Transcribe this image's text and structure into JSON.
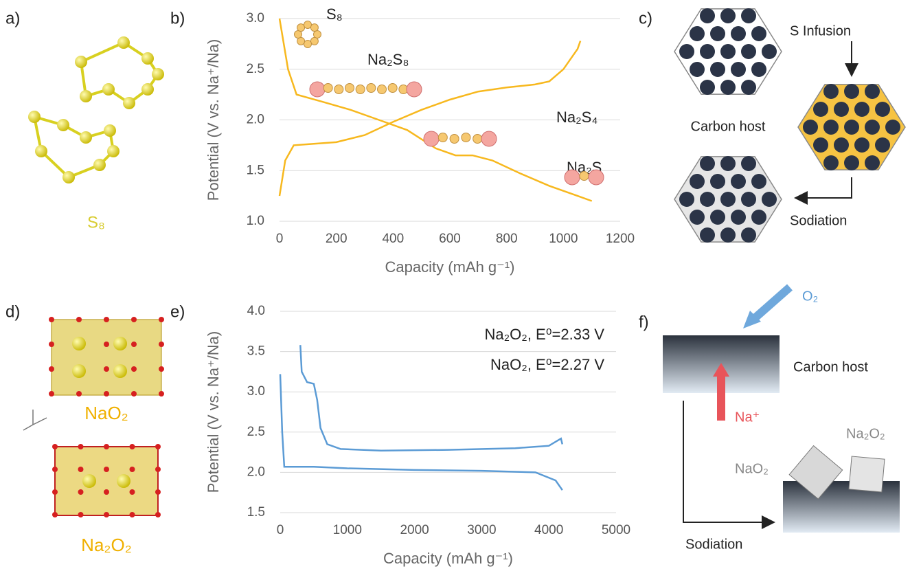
{
  "chart_data": [
    {
      "type": "line",
      "xlabel": "Capacity (mAh g⁻¹)",
      "ylabel": "Potential (V vs. Na⁺/Na)",
      "xlim": [
        0,
        1200
      ],
      "xticks": [
        0,
        200,
        400,
        600,
        800,
        1000,
        1200
      ],
      "ylim": [
        1,
        3
      ],
      "yticks": [
        {
          "value": 1,
          "label": "1.0"
        },
        1.5,
        {
          "value": 2,
          "label": "2.0"
        },
        2.5,
        {
          "value": 3,
          "label": "3.0"
        }
      ],
      "grid": true,
      "annotations": [
        "S₈",
        "Na₂S₈",
        "Na₂S₄",
        "Na₂S"
      ],
      "series": [
        {
          "color": "#f7b81e",
          "x": [
            0,
            30,
            60,
            150,
            250,
            350,
            450,
            550,
            620,
            680,
            750,
            850,
            950,
            1050,
            1100
          ],
          "values": [
            3.0,
            2.5,
            2.25,
            2.18,
            2.1,
            2.0,
            1.9,
            1.72,
            1.65,
            1.65,
            1.6,
            1.47,
            1.35,
            1.25,
            1.2
          ]
        },
        {
          "color": "#f7b81e",
          "x": [
            0,
            20,
            50,
            100,
            200,
            300,
            400,
            500,
            600,
            700,
            800,
            900,
            950,
            1000,
            1050,
            1060
          ],
          "values": [
            1.25,
            1.6,
            1.75,
            1.76,
            1.78,
            1.85,
            1.98,
            2.1,
            2.2,
            2.28,
            2.32,
            2.35,
            2.38,
            2.5,
            2.7,
            2.78
          ]
        }
      ]
    },
    {
      "type": "line",
      "xlabel": "Capacity (mAh g⁻¹)",
      "ylabel": "Potential (V vs. Na⁺/Na)",
      "xlim": [
        0,
        5000
      ],
      "xticks": [
        0,
        1000,
        2000,
        3000,
        4000,
        5000
      ],
      "ylim": [
        1.5,
        4
      ],
      "yticks": [
        1.5,
        {
          "value": 2,
          "label": "2.0"
        },
        2.5,
        {
          "value": 3,
          "label": "3.0"
        },
        3.5,
        {
          "value": 4,
          "label": "4.0"
        }
      ],
      "grid": true,
      "annotations": [
        "Na₂O₂, E⁰=2.33 V",
        "NaO₂, E⁰=2.27 V"
      ],
      "series": [
        {
          "color": "#5b9bd5",
          "x": [
            0,
            30,
            60,
            500,
            1000,
            2000,
            3000,
            3800,
            4100,
            4200
          ],
          "values": [
            3.22,
            2.5,
            2.07,
            2.07,
            2.05,
            2.03,
            2.02,
            2.0,
            1.9,
            1.78
          ]
        },
        {
          "color": "#5b9bd5",
          "x": [
            300,
            320,
            400,
            500,
            550,
            600,
            700,
            900,
            1500,
            2500,
            3500,
            4000,
            4180,
            4200
          ],
          "values": [
            3.58,
            3.25,
            3.12,
            3.1,
            2.9,
            2.55,
            2.35,
            2.29,
            2.27,
            2.28,
            2.3,
            2.33,
            2.42,
            2.35
          ]
        }
      ]
    }
  ],
  "panels": {
    "labels": [
      "a)",
      "b)",
      "c)",
      "d)",
      "e)",
      "f)"
    ],
    "a": {
      "molecule": "S₈"
    },
    "c": {
      "step1": "S Infusion",
      "host": "Carbon host",
      "step2": "Sodiation"
    },
    "d": {
      "top": "NaO₂",
      "bottom": "Na₂O₂"
    },
    "f": {
      "gas": "O₂",
      "ion": "Na⁺",
      "host": "Carbon host",
      "product1": "NaO₂",
      "product2": "Na₂O₂",
      "step": "Sodiation"
    }
  }
}
